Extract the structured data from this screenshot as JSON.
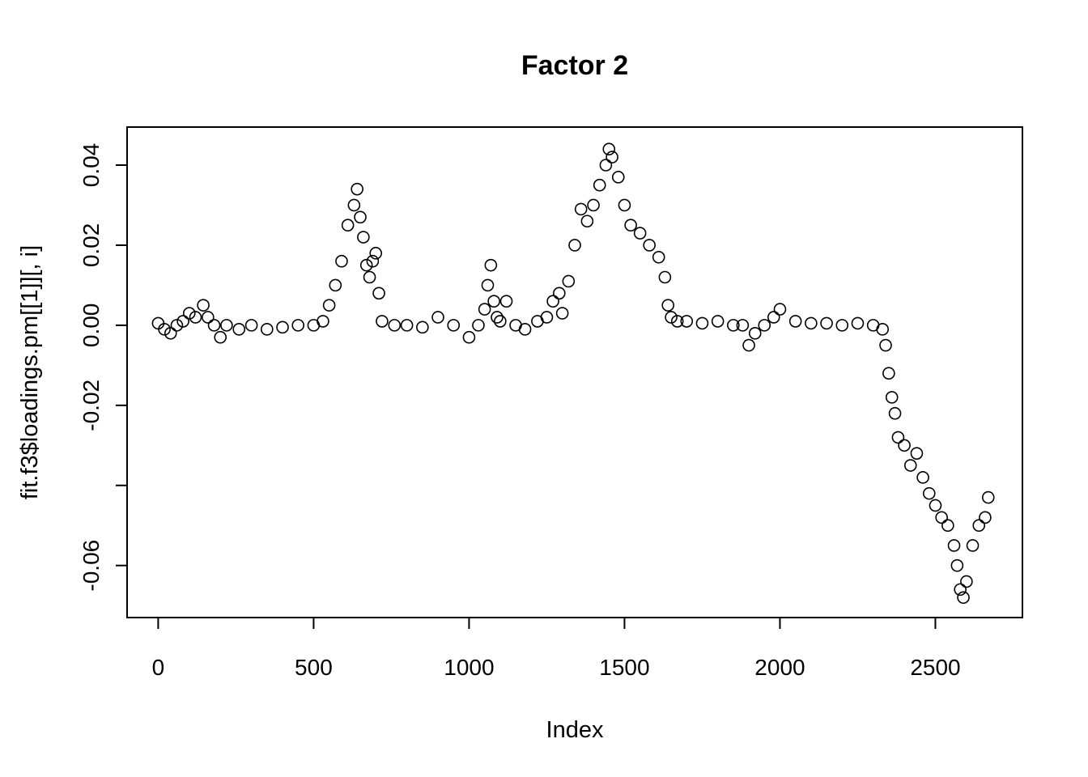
{
  "chart_data": {
    "type": "scatter",
    "title": "Factor 2",
    "xlabel": "Index",
    "ylabel": "fit.f3$loadings.pm[[1]][, i]",
    "xlim": [
      -100,
      2780
    ],
    "ylim": [
      -0.073,
      0.0495
    ],
    "x_ticks": [
      0,
      500,
      1000,
      1500,
      2000,
      2500
    ],
    "x_tick_labels": [
      "0",
      "500",
      "1000",
      "1500",
      "2000",
      "2500"
    ],
    "y_ticks": [
      0.04,
      0.02,
      0.0,
      -0.02,
      -0.04,
      -0.06
    ],
    "y_tick_labels": [
      "0.04",
      "0.02",
      "0.00",
      "-0.02",
      "",
      "-0.06"
    ],
    "grid": false,
    "legend": "none",
    "marker": "open-circle",
    "series": [
      {
        "x": [
          0,
          20,
          40,
          60,
          80,
          100,
          120,
          145,
          160,
          180,
          200,
          220,
          260,
          300,
          350,
          400,
          450,
          500,
          530,
          550,
          570,
          590,
          610,
          630,
          640,
          650,
          660,
          670,
          680,
          690,
          700,
          710,
          720,
          760,
          800,
          850,
          900,
          950,
          1000,
          1030,
          1050,
          1060,
          1070,
          1080,
          1090,
          1100,
          1120,
          1150,
          1180,
          1220,
          1250,
          1270,
          1290,
          1300,
          1320,
          1340,
          1360,
          1380,
          1400,
          1420,
          1440,
          1450,
          1460,
          1480,
          1500,
          1520,
          1550,
          1580,
          1610,
          1630,
          1640,
          1650,
          1670,
          1700,
          1750,
          1800,
          1850,
          1880,
          1900,
          1920,
          1950,
          1980,
          2000,
          2050,
          2100,
          2150,
          2200,
          2250,
          2300,
          2330,
          2340,
          2350,
          2360,
          2370,
          2380,
          2400,
          2420,
          2440,
          2460,
          2480,
          2500,
          2520,
          2540,
          2560,
          2570,
          2580,
          2590,
          2600,
          2620,
          2640,
          2660,
          2670
        ],
        "y": [
          0.0005,
          -0.001,
          -0.002,
          0.0,
          0.001,
          0.003,
          0.002,
          0.005,
          0.002,
          0.0,
          -0.003,
          0.0,
          -0.001,
          0.0,
          -0.001,
          -0.0005,
          0.0,
          0.0,
          0.001,
          0.005,
          0.01,
          0.016,
          0.025,
          0.03,
          0.034,
          0.027,
          0.022,
          0.015,
          0.012,
          0.016,
          0.018,
          0.008,
          0.001,
          0.0,
          0.0,
          -0.0005,
          0.002,
          0.0,
          -0.003,
          0.0,
          0.004,
          0.01,
          0.015,
          0.006,
          0.002,
          0.001,
          0.006,
          0.0,
          -0.001,
          0.001,
          0.002,
          0.006,
          0.008,
          0.003,
          0.011,
          0.02,
          0.029,
          0.026,
          0.03,
          0.035,
          0.04,
          0.044,
          0.042,
          0.037,
          0.03,
          0.025,
          0.023,
          0.02,
          0.017,
          0.012,
          0.005,
          0.002,
          0.001,
          0.001,
          0.0005,
          0.001,
          0.0,
          0.0,
          -0.005,
          -0.002,
          0.0,
          0.002,
          0.004,
          0.001,
          0.0005,
          0.0005,
          0.0,
          0.0005,
          0.0,
          -0.001,
          -0.005,
          -0.012,
          -0.018,
          -0.022,
          -0.028,
          -0.03,
          -0.035,
          -0.032,
          -0.038,
          -0.042,
          -0.045,
          -0.048,
          -0.05,
          -0.055,
          -0.06,
          -0.066,
          -0.068,
          -0.064,
          -0.055,
          -0.05,
          -0.048,
          -0.043
        ]
      }
    ]
  }
}
